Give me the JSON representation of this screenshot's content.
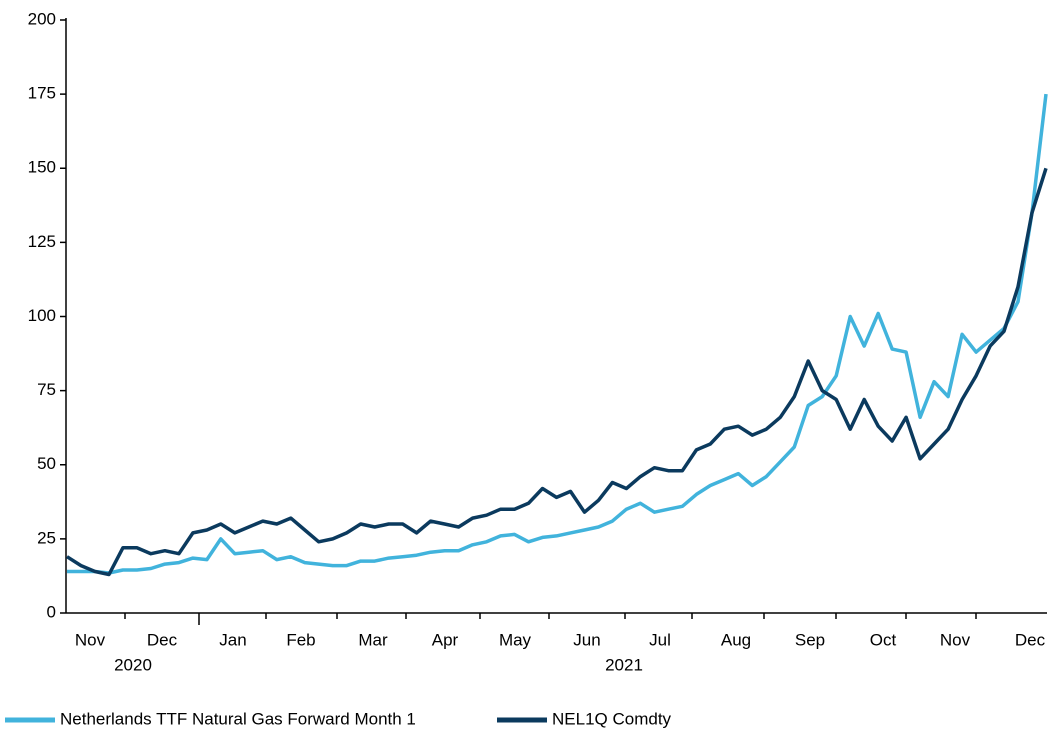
{
  "chart_data": {
    "type": "line",
    "x_axis": {
      "months": [
        "Nov",
        "Dec",
        "Jan",
        "Feb",
        "Mar",
        "Apr",
        "May",
        "Jun",
        "Jul",
        "Aug",
        "Sep",
        "Oct",
        "Nov",
        "Dec"
      ],
      "years": [
        "2020",
        "2021"
      ]
    },
    "ylim": [
      0,
      200
    ],
    "yticks": [
      0,
      25,
      50,
      75,
      100,
      125,
      150,
      175,
      200
    ],
    "legend": "bottom",
    "series": [
      {
        "name": "Netherlands TTF Natural Gas Forward Month 1",
        "color": "#41b3dc",
        "values": [
          14,
          14,
          14,
          13.5,
          14.5,
          14.5,
          15,
          16.5,
          17,
          18.5,
          18,
          25,
          20,
          20.5,
          21,
          18,
          19,
          17,
          16.5,
          16,
          16,
          17.5,
          17.5,
          18.5,
          19,
          19.5,
          20.5,
          21,
          21,
          23,
          24,
          26,
          26.5,
          24,
          25.5,
          26,
          27,
          28,
          29,
          31,
          35,
          37,
          34,
          35,
          36,
          40,
          43,
          45,
          47,
          43,
          46,
          51,
          56,
          70,
          73,
          80,
          100,
          90,
          101,
          89,
          88,
          66,
          78,
          73,
          94,
          88,
          92,
          96,
          105,
          135,
          175
        ]
      },
      {
        "name": "NEL1Q Comdty",
        "color": "#0b3a5e",
        "values": [
          19,
          16,
          14,
          13,
          22,
          22,
          20,
          21,
          20,
          27,
          28,
          30,
          27,
          29,
          31,
          30,
          32,
          28,
          24,
          25,
          27,
          30,
          29,
          30,
          30,
          27,
          31,
          30,
          29,
          32,
          33,
          35,
          35,
          37,
          42,
          39,
          41,
          34,
          38,
          44,
          42,
          46,
          49,
          48,
          48,
          55,
          57,
          62,
          63,
          60,
          62,
          66,
          73,
          85,
          75,
          72,
          62,
          72,
          63,
          58,
          66,
          52,
          57,
          62,
          72,
          80,
          90,
          95,
          110,
          135,
          150
        ]
      }
    ]
  }
}
